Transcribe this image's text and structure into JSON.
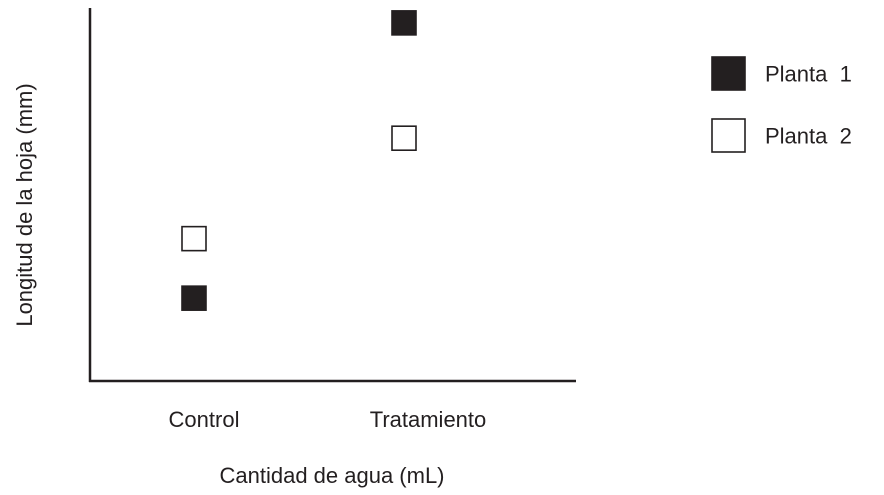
{
  "chart_data": {
    "type": "scatter",
    "title": "",
    "xlabel": "Cantidad de agua (mL)",
    "ylabel": "Longitud de la hoja (mm)",
    "categories": [
      "Control",
      "Tratamiento"
    ],
    "ylim": [
      0,
      100
    ],
    "y_ticks_shown": false,
    "grid": false,
    "legend_position": "right",
    "series": [
      {
        "name": "Planta 1",
        "marker": "filled-square",
        "color": "#231f20",
        "values": [
          22,
          96
        ]
      },
      {
        "name": "Planta 2",
        "marker": "open-square",
        "color": "#231f20",
        "values": [
          38,
          65
        ]
      }
    ]
  }
}
